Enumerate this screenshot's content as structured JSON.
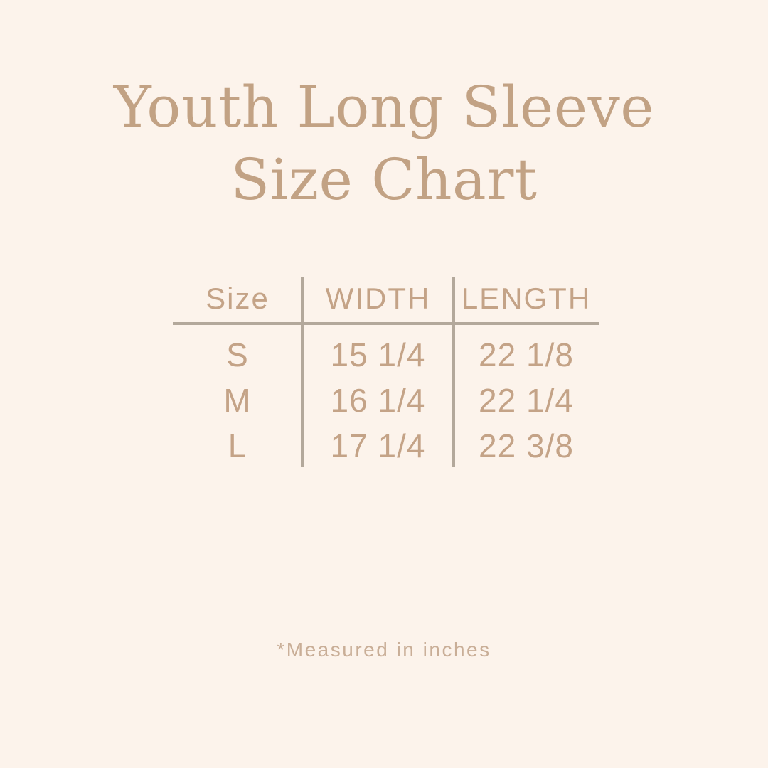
{
  "colors": {
    "background": "#FCF3EB",
    "title": "#C2A284",
    "table_text": "#C4A387",
    "table_lines": "#B3A89B",
    "footnote": "#C9AE97"
  },
  "title": {
    "line1": "Youth Long Sleeve",
    "line2": "Size Chart"
  },
  "table": {
    "columns": [
      "Size",
      "WIDTH",
      "LENGTH"
    ],
    "rows": [
      {
        "size": "S",
        "width": "15 1/4",
        "length": "22 1/8"
      },
      {
        "size": "M",
        "width": "16 1/4",
        "length": "22 1/4"
      },
      {
        "size": "L",
        "width": "17 1/4",
        "length": "22 3/8"
      }
    ]
  },
  "footnote": "*Measured in inches",
  "chart_data": {
    "type": "table",
    "title": "Youth Long Sleeve Size Chart",
    "columns": [
      "Size",
      "WIDTH",
      "LENGTH"
    ],
    "rows": [
      [
        "S",
        "15 1/4",
        "22 1/8"
      ],
      [
        "M",
        "16 1/4",
        "22 1/4"
      ],
      [
        "L",
        "17 1/4",
        "22 3/8"
      ]
    ],
    "footnote": "*Measured in inches",
    "units": "inches",
    "layout": "header row separated by horizontal rule; vertical dividers between the three columns"
  }
}
